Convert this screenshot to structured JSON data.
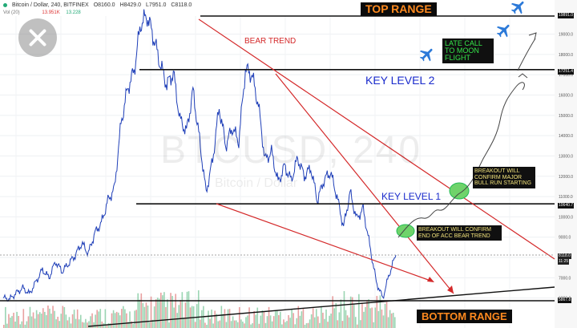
{
  "header": {
    "symbol": "Bitcoin / Dollar, 240, BITFINEX",
    "open": "O8160.0",
    "high": "H8429.0",
    "low": "L7951.0",
    "close": "C8118.0",
    "vol_label": "Vol (20)",
    "vol_v1": "13.951K",
    "vol_v2": "13.228"
  },
  "watermark": {
    "symbol": "BTCUSD, 240",
    "sub": "Bitcoin / Dollar"
  },
  "annotations": {
    "top_range": "TOP RANGE",
    "bottom_range": "BOTTOM RANGE",
    "key_level_2": "KEY LEVEL 2",
    "key_level_1": "KEY LEVEL 1",
    "bear_trend": "BEAR TREND",
    "moon_note": "LATE CALL TO MOON FLIGHT",
    "note_bull": "BREAKOUT WILL CONFIRM MAJOR BULL RUN STARTING",
    "note_bear_end": "BREAKOUT WILL CONFIRM END OF ACC BEAR TREND"
  },
  "price_badges": {
    "top": "19891.0",
    "key2": "17251.4",
    "key1": "10640.7",
    "current": "8118.0",
    "current_time": "11:25",
    "bottom": "5867.8"
  },
  "colors": {
    "price_line": "#1f3fb8",
    "bear_trend": "#d4292a",
    "level_line": "#111111",
    "label_blue": "#1a2bcc",
    "badge_orange": "#ff8a1f",
    "note_green": "#35e64a",
    "note_yellow": "#f2e27a",
    "breakout_circle": "#6fd36a",
    "plane": "#2b79d8",
    "volume_up": "#7ac79a",
    "volume_down": "#e28080"
  },
  "icons": [
    "close-icon",
    "airplane-icon"
  ],
  "chart_data": {
    "type": "line",
    "title": "Bitcoin / Dollar, 240, BITFINEX",
    "xlabel": "",
    "ylabel": "",
    "ylim": [
      5500,
      20500
    ],
    "y_ticks": [
      "19000.0",
      "18000.0",
      "17000.0",
      "16000.0",
      "15000.0",
      "14000.0",
      "13000.0",
      "12000.0",
      "11000.0",
      "10000.0",
      "9000.0",
      "8000.0",
      "7000.0",
      "6000.0"
    ],
    "series": [
      {
        "values": [
          6000,
          5950,
          6250,
          6500,
          6200,
          6800,
          7400,
          7000,
          7800,
          7300,
          7700,
          8100,
          8700,
          8200,
          9200,
          9700,
          10800,
          11400,
          14600,
          16300,
          17200,
          19500,
          19891,
          18800,
          17500,
          16500,
          17100,
          14800,
          14200,
          16200,
          13800,
          11200,
          12800,
          15400,
          13500,
          14400,
          13700,
          17251,
          17000,
          15500,
          12800,
          13200,
          11700,
          12500,
          11800,
          12900,
          12000,
          12400,
          10800,
          11800,
          12200,
          11000,
          9500,
          11200,
          9900,
          10400,
          8600,
          6800,
          6000,
          7200,
          8118
        ]
      }
    ],
    "levels": [
      {
        "label": "TOP RANGE",
        "value": 19891.0
      },
      {
        "label": "KEY LEVEL 2",
        "value": 17251.4
      },
      {
        "label": "KEY LEVEL 1",
        "value": 10640.7
      },
      {
        "label": "BOTTOM RANGE",
        "value": 5867.8
      }
    ],
    "grid": true
  }
}
